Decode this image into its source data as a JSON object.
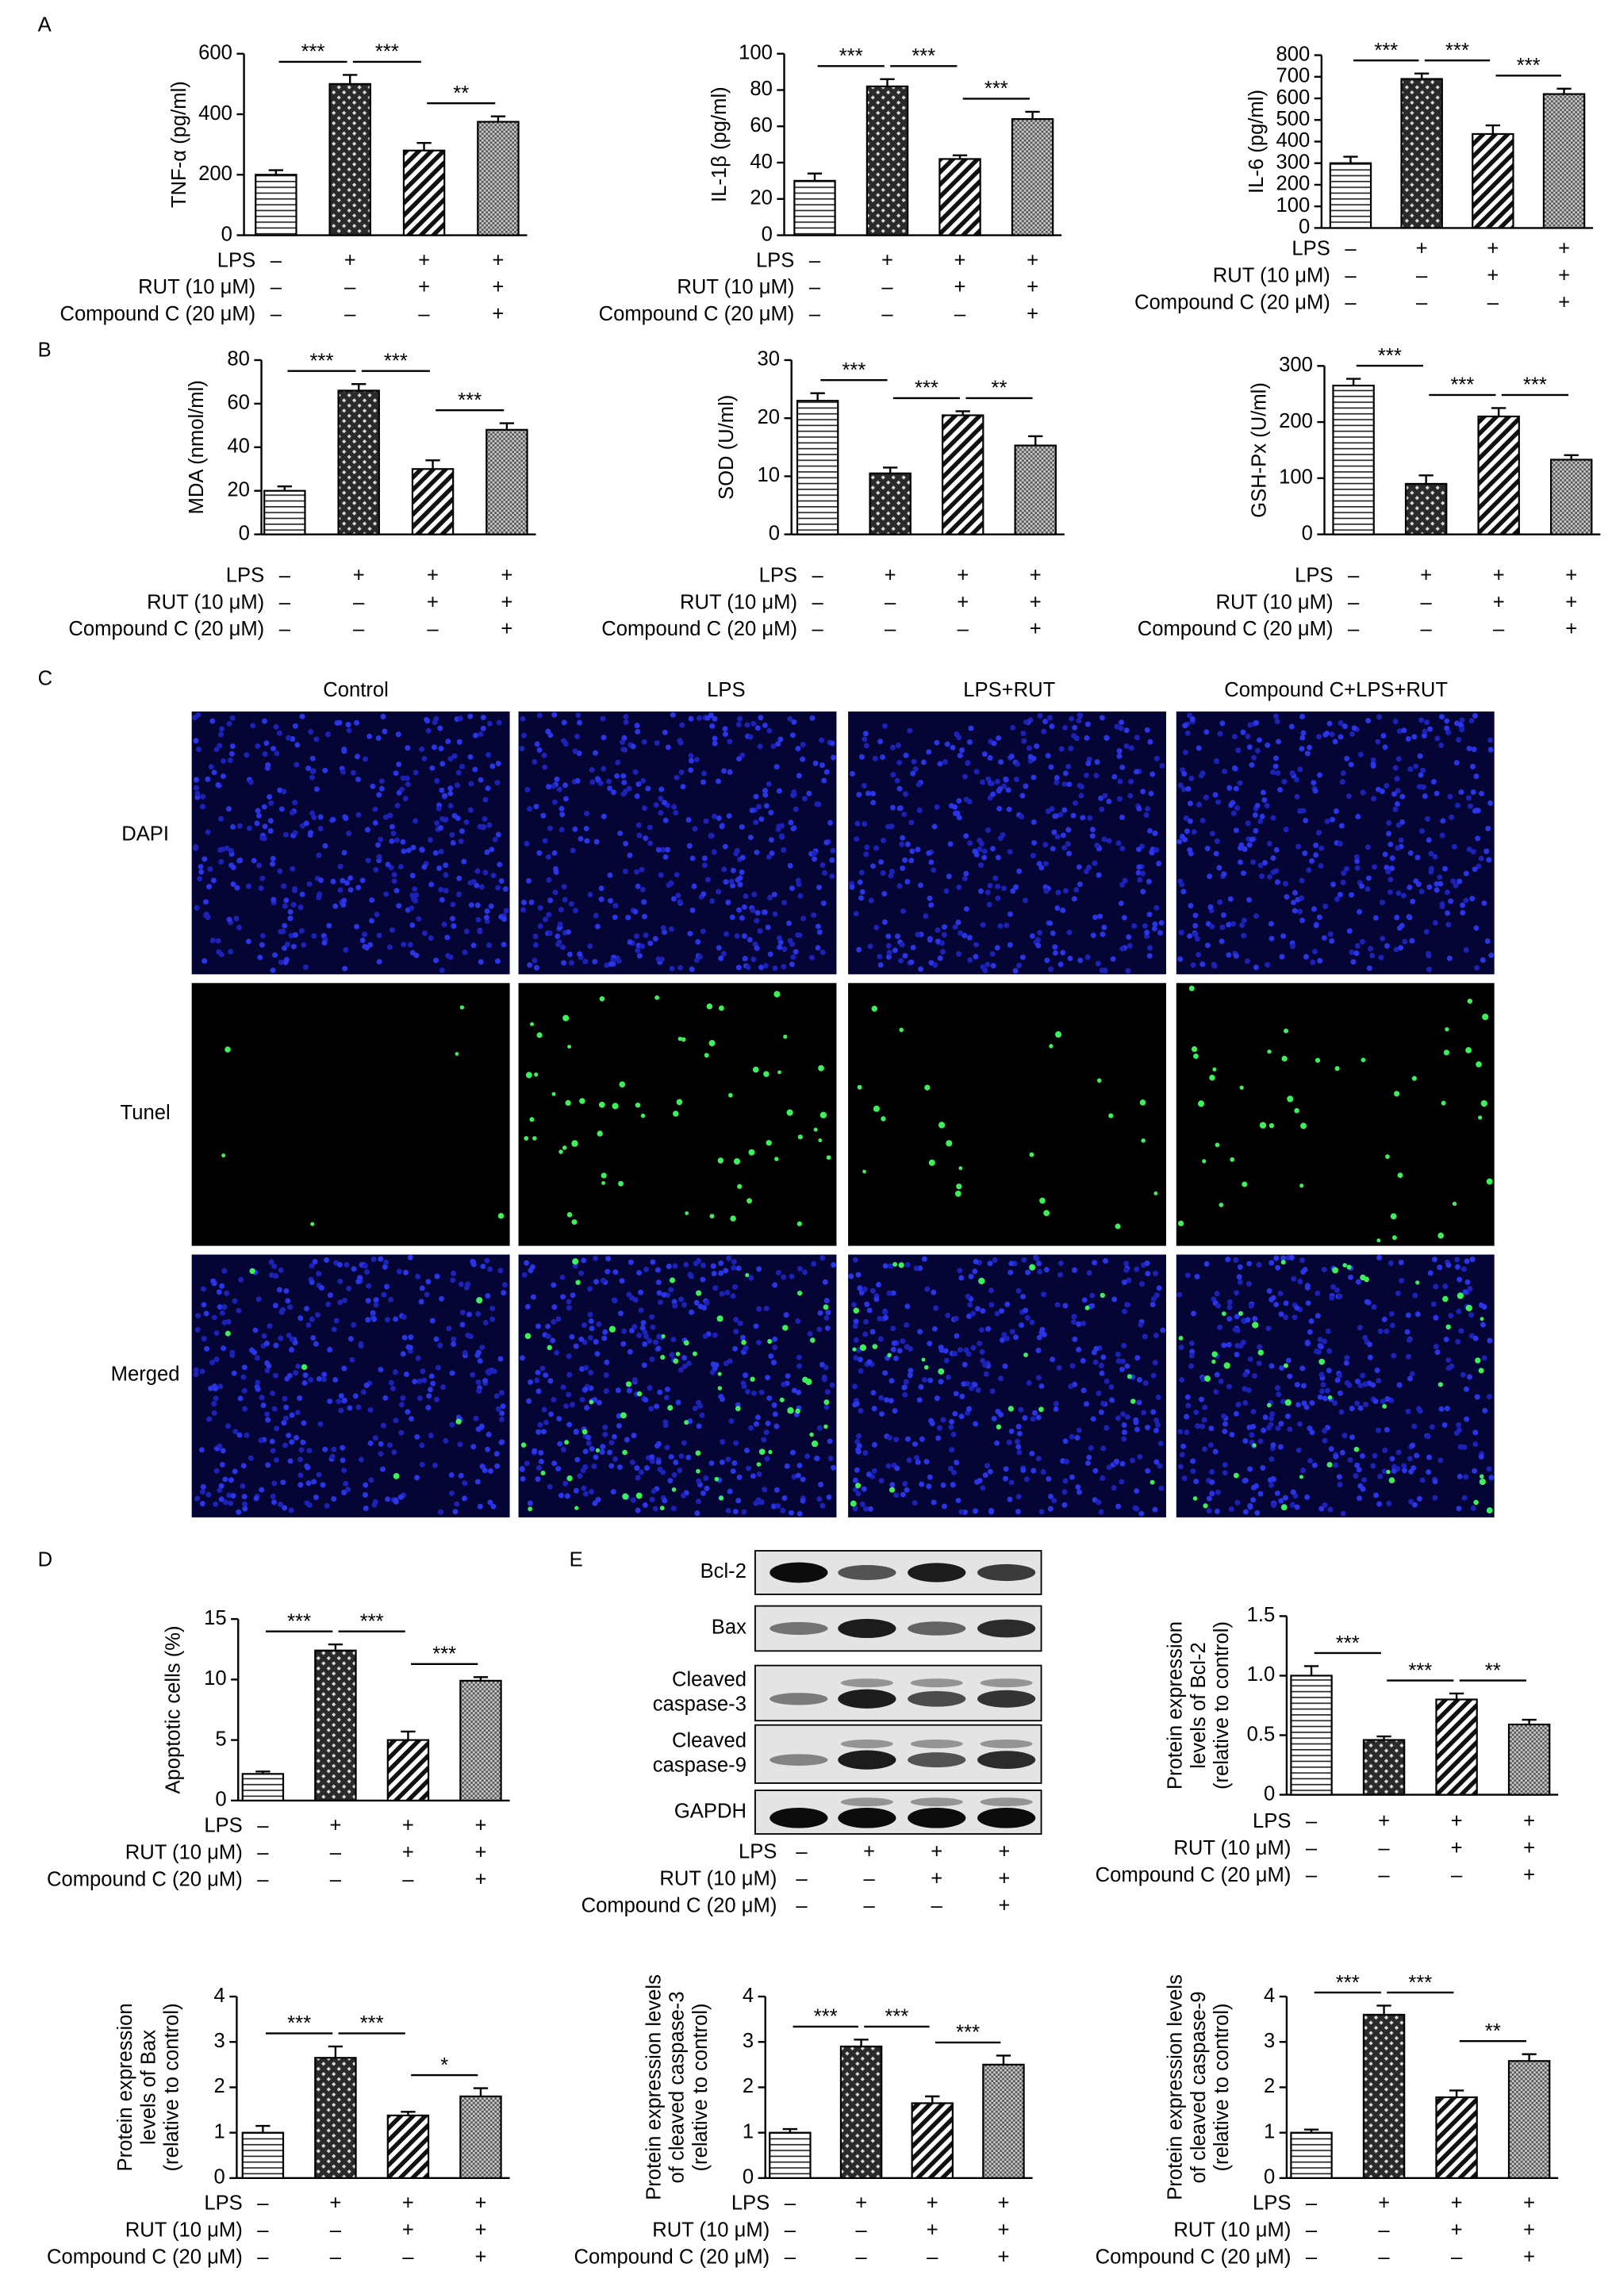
{
  "panels": [
    "A",
    "B",
    "C",
    "D",
    "E"
  ],
  "treatments": [
    {
      "label": "LPS",
      "signs": [
        "–",
        "+",
        "+",
        "+"
      ]
    },
    {
      "label": "RUT (10 μM)",
      "signs": [
        "–",
        "–",
        "+",
        "+"
      ]
    },
    {
      "label": "Compound C (20 μM)",
      "signs": [
        "–",
        "–",
        "–",
        "+"
      ]
    }
  ],
  "microscopy": {
    "columns": [
      "Control",
      "LPS",
      "LPS+RUT",
      "Compound C+LPS+RUT"
    ],
    "rows": [
      "DAPI",
      "Tunel",
      "Merged"
    ]
  },
  "blot": {
    "bands": [
      [
        "Bcl-2"
      ],
      [
        "Bax"
      ],
      [
        "Cleaved",
        "caspase-3"
      ],
      [
        "Cleaved",
        "caspase-9"
      ],
      [
        "GAPDH"
      ]
    ]
  },
  "chart_data": [
    {
      "type": "bar",
      "ylabel": [
        "TNF-α (pg/ml)"
      ],
      "values": [
        200,
        500,
        280,
        375
      ],
      "errors": [
        15,
        30,
        25,
        18
      ],
      "ylim": [
        0,
        600
      ],
      "yticks": [
        0,
        200,
        400,
        600
      ],
      "annotations": [
        "***",
        "***",
        "**"
      ]
    },
    {
      "type": "bar",
      "ylabel": [
        "IL-1β (pg/ml)"
      ],
      "values": [
        30,
        82,
        42,
        64
      ],
      "errors": [
        4,
        4,
        2,
        4
      ],
      "ylim": [
        0,
        100
      ],
      "yticks": [
        0,
        20,
        40,
        60,
        80,
        100
      ],
      "annotations": [
        "***",
        "***",
        "***"
      ]
    },
    {
      "type": "bar",
      "ylabel": [
        "IL-6 (pg/ml)"
      ],
      "values": [
        300,
        690,
        435,
        620
      ],
      "errors": [
        30,
        25,
        40,
        25
      ],
      "ylim": [
        0,
        800
      ],
      "yticks": [
        0,
        100,
        200,
        300,
        400,
        500,
        600,
        700,
        800
      ],
      "annotations": [
        "***",
        "***",
        "***"
      ]
    },
    {
      "type": "bar",
      "ylabel": [
        "MDA (nmol/ml)"
      ],
      "values": [
        20,
        66,
        30,
        48
      ],
      "errors": [
        2,
        3,
        4,
        3
      ],
      "ylim": [
        0,
        80
      ],
      "yticks": [
        0,
        20,
        40,
        60,
        80
      ],
      "annotations": [
        "***",
        "***",
        "***"
      ]
    },
    {
      "type": "bar",
      "ylabel": [
        "SOD (U/ml)"
      ],
      "values": [
        23,
        10.5,
        20.5,
        15.3
      ],
      "errors": [
        1.3,
        1,
        0.7,
        1.6
      ],
      "ylim": [
        0,
        30
      ],
      "yticks": [
        0,
        10,
        20,
        30
      ],
      "annotations": [
        "***",
        "***",
        "**"
      ]
    },
    {
      "type": "bar",
      "ylabel": [
        "GSH-Px (U/ml)"
      ],
      "values": [
        265,
        90,
        210,
        133
      ],
      "errors": [
        12,
        15,
        15,
        8
      ],
      "ylim": [
        0,
        300
      ],
      "yticks": [
        0,
        100,
        200,
        300
      ],
      "annotations": [
        "***",
        "***",
        "***"
      ]
    },
    {
      "type": "bar",
      "ylabel": [
        "Apoptotic cells (%)"
      ],
      "values": [
        2.2,
        12.4,
        5,
        9.9
      ],
      "errors": [
        0.2,
        0.5,
        0.7,
        0.3
      ],
      "ylim": [
        0,
        15
      ],
      "yticks": [
        0,
        5,
        10,
        15
      ],
      "annotations": [
        "***",
        "***",
        "***"
      ]
    },
    {
      "type": "bar",
      "ylabel": [
        "Protein expression",
        "levels of Bcl-2",
        "(relative to control)"
      ],
      "values": [
        1.0,
        0.46,
        0.8,
        0.59
      ],
      "errors": [
        0.08,
        0.03,
        0.05,
        0.04
      ],
      "ylim": [
        0,
        1.5
      ],
      "yticks": [
        0,
        0.5,
        {
          "value": 1,
          "label": "1.0"
        },
        1.5
      ],
      "annotations": [
        "***",
        "***",
        "**"
      ]
    },
    {
      "type": "bar",
      "ylabel": [
        "Protein expression",
        "levels of Bax",
        "(relative to control)"
      ],
      "values": [
        1.0,
        2.65,
        1.38,
        1.8
      ],
      "errors": [
        0.15,
        0.25,
        0.08,
        0.18
      ],
      "ylim": [
        0,
        4
      ],
      "yticks": [
        0,
        1,
        2,
        3,
        4
      ],
      "annotations": [
        "***",
        "***",
        "*"
      ]
    },
    {
      "type": "bar",
      "ylabel": [
        "Protein expression levels",
        "of cleaved caspase-3",
        "(relative to control)"
      ],
      "values": [
        1.0,
        2.9,
        1.65,
        2.5
      ],
      "errors": [
        0.08,
        0.15,
        0.15,
        0.2
      ],
      "ylim": [
        0,
        4
      ],
      "yticks": [
        0,
        1,
        2,
        3,
        4
      ],
      "annotations": [
        "***",
        "***",
        "***"
      ]
    },
    {
      "type": "bar",
      "ylabel": [
        "Protein expression levels",
        "of cleaved caspase-9",
        "(relative to control)"
      ],
      "values": [
        1.0,
        3.6,
        1.78,
        2.58
      ],
      "errors": [
        0.07,
        0.2,
        0.15,
        0.15
      ],
      "ylim": [
        0,
        4
      ],
      "yticks": [
        0,
        1,
        2,
        3,
        4
      ],
      "annotations": [
        "***",
        "***",
        "**"
      ]
    }
  ]
}
